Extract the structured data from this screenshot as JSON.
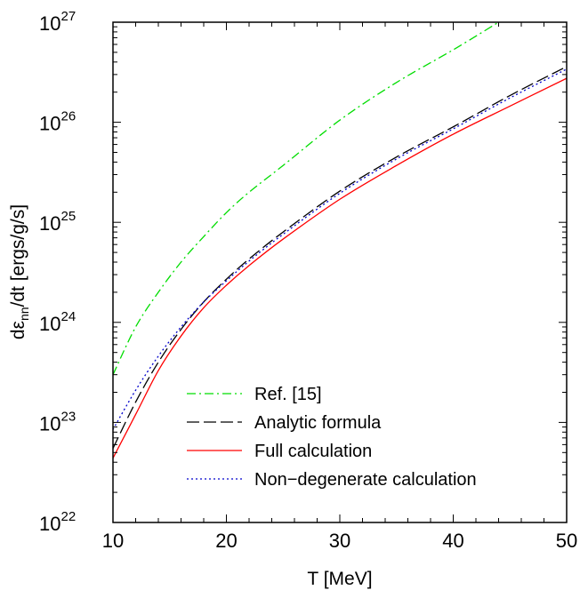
{
  "chart_data": {
    "type": "line",
    "xlabel": "T [MeV]",
    "ylabel": {
      "prefix": "dε",
      "subscript": "nn",
      "suffix": "/dt [ergs/g/s]"
    },
    "xlim": [
      10,
      50
    ],
    "ylim": [
      1e+22,
      1e+27
    ],
    "yscale": "log",
    "x_ticks": [
      10,
      20,
      30,
      40,
      50
    ],
    "y_ticks": [
      {
        "base": "10",
        "exp": "22",
        "value": 1e+22
      },
      {
        "base": "10",
        "exp": "23",
        "value": 1e+23
      },
      {
        "base": "10",
        "exp": "24",
        "value": 1e+24
      },
      {
        "base": "10",
        "exp": "25",
        "value": 1e+25
      },
      {
        "base": "10",
        "exp": "26",
        "value": 1e+26
      },
      {
        "base": "10",
        "exp": "27",
        "value": 1e+27
      }
    ],
    "grid": false,
    "legend_position": "bottom-right",
    "series": [
      {
        "name": "Ref. [15]",
        "color": "#00dd00",
        "dash": "10,4,2,4",
        "x": [
          10,
          12,
          14,
          16,
          18,
          20,
          22,
          25,
          30,
          35,
          40,
          44
        ],
        "y": [
          3e+23,
          9e+23,
          2e+24,
          4e+24,
          7.2e+24,
          1.25e+25,
          2e+25,
          3.7e+25,
          1.05e+26,
          2.5e+26,
          5.3e+26,
          1e+27
        ]
      },
      {
        "name": "Analytic formula",
        "color": "#000000",
        "dash": "14,5",
        "x": [
          10,
          12,
          14,
          16,
          18,
          20,
          22,
          25,
          30,
          35,
          40,
          45,
          50
        ],
        "y": [
          5.5e+22,
          1.6e+23,
          4e+23,
          8.5e+23,
          1.6e+24,
          2.7e+24,
          4.3e+24,
          8e+24,
          2.05e+25,
          4.5e+25,
          9e+25,
          1.85e+26,
          3.6e+26
        ]
      },
      {
        "name": "Full calculation",
        "color": "#ff0000",
        "dash": "",
        "x": [
          10,
          12,
          14,
          16,
          18,
          20,
          22,
          25,
          30,
          35,
          40,
          45,
          50
        ],
        "y": [
          4.4e+22,
          1.2e+23,
          3.3e+23,
          7.3e+23,
          1.4e+24,
          2.35e+24,
          3.7e+24,
          6.8e+24,
          1.7e+25,
          3.7e+25,
          7.6e+25,
          1.45e+26,
          2.75e+26
        ]
      },
      {
        "name": "Non−degenerate calculation",
        "color": "#0000cc",
        "dash": "2,3",
        "x": [
          10,
          12,
          14,
          16,
          18,
          20,
          22,
          25,
          30,
          35,
          40,
          45,
          50
        ],
        "y": [
          8.5e+22,
          2.1e+23,
          4.6e+23,
          9e+23,
          1.6e+24,
          2.6e+24,
          4.1e+24,
          7.6e+24,
          1.95e+25,
          4.3e+25,
          8.6e+25,
          1.75e+26,
          3.4e+26
        ]
      }
    ]
  }
}
